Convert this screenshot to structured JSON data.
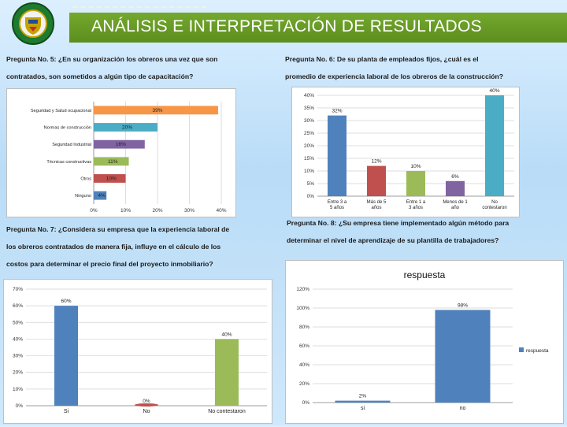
{
  "header": {
    "title": "ANÁLISIS E INTERPRETACIÓN DE RESULTADOS"
  },
  "questions": {
    "q5": [
      "Pregunta No. 5: ¿En su organización los obreros una vez que son",
      "contratados, son sometidos a algún tipo de capacitación?"
    ],
    "q6": [
      "Pregunta No. 6: De su planta de empleados fijos, ¿cuál es el",
      "promedio de experiencia laboral de los obreros de la construcción?"
    ],
    "q7": [
      "Pregunta No. 7: ¿Considera su empresa que la experiencia laboral de",
      "los obreros contratados de manera fija, influye en el cálculo de los",
      "costos para determinar el precio final del proyecto inmobiliario?"
    ],
    "q8": [
      "Pregunta No. 8: ¿Su empresa tiene implementado algún método para",
      "determinar el nivel de aprendizaje de su plantilla de trabajadores?"
    ]
  },
  "colors": {
    "olive": "#9bbb59",
    "blue": "#4f81bd",
    "purple": "#8064a2",
    "red": "#c0504d",
    "green": "#9bbb59",
    "teal": "#4bacc6",
    "orange": "#f79646"
  },
  "chart_data": [
    {
      "id": "q5",
      "type": "bar",
      "orientation": "horizontal",
      "categories": [
        "Seguridad y Salud ocupacional",
        "Normas de construcción",
        "Seguridad Industrial",
        "Técnicas constructivas",
        "Otros",
        "Ninguno"
      ],
      "values": [
        39,
        20,
        16,
        11,
        10,
        4
      ],
      "labels": [
        "39%",
        "20%",
        "16%",
        "11%",
        "10%",
        "4%"
      ],
      "bar_colors": [
        "#f79646",
        "#4bacc6",
        "#8064a2",
        "#9bbb59",
        "#c0504d",
        "#4f81bd"
      ],
      "ticks": [
        "0%",
        "10%",
        "20%",
        "30%",
        "40%"
      ],
      "xlim": [
        0,
        40
      ],
      "grid": true
    },
    {
      "id": "q6",
      "type": "bar",
      "categories": [
        "Entre 3 a 5 años",
        "Más de 5 años",
        "Entre 1 a 3 años",
        "Menos de 1 año",
        "No contestaron"
      ],
      "values": [
        32,
        12,
        10,
        6,
        40
      ],
      "labels": [
        "32%",
        "12%",
        "10%",
        "6%",
        "40%"
      ],
      "bar_colors": [
        "#4f81bd",
        "#c0504d",
        "#9bbb59",
        "#8064a2",
        "#4bacc6"
      ],
      "ticks": [
        "0%",
        "5%",
        "10%",
        "15%",
        "20%",
        "25%",
        "30%",
        "35%",
        "40%"
      ],
      "ylim": [
        0,
        40
      ],
      "grid": true
    },
    {
      "id": "q7",
      "type": "bar",
      "categories": [
        "Si",
        "No",
        "No contestaron"
      ],
      "values": [
        60,
        0,
        40
      ],
      "labels": [
        "60%",
        "0%",
        "40%"
      ],
      "bar_colors": [
        "#4f81bd",
        "#c0504d",
        "#9bbb59"
      ],
      "ticks": [
        "0%",
        "10%",
        "20%",
        "30%",
        "40%",
        "50%",
        "60%",
        "70%"
      ],
      "ylim": [
        0,
        70
      ],
      "grid": true
    },
    {
      "id": "q8",
      "type": "bar",
      "title": "respuesta",
      "categories": [
        "si",
        "no"
      ],
      "values": [
        2,
        98
      ],
      "labels": [
        "2%",
        "98%"
      ],
      "bar_colors": [
        "#4f81bd",
        "#4f81bd"
      ],
      "ticks": [
        "0%",
        "20%",
        "40%",
        "60%",
        "80%",
        "100%",
        "120%"
      ],
      "ylim": [
        0,
        120
      ],
      "grid": true,
      "legend": {
        "label": "respuesta",
        "position": "right"
      }
    }
  ]
}
